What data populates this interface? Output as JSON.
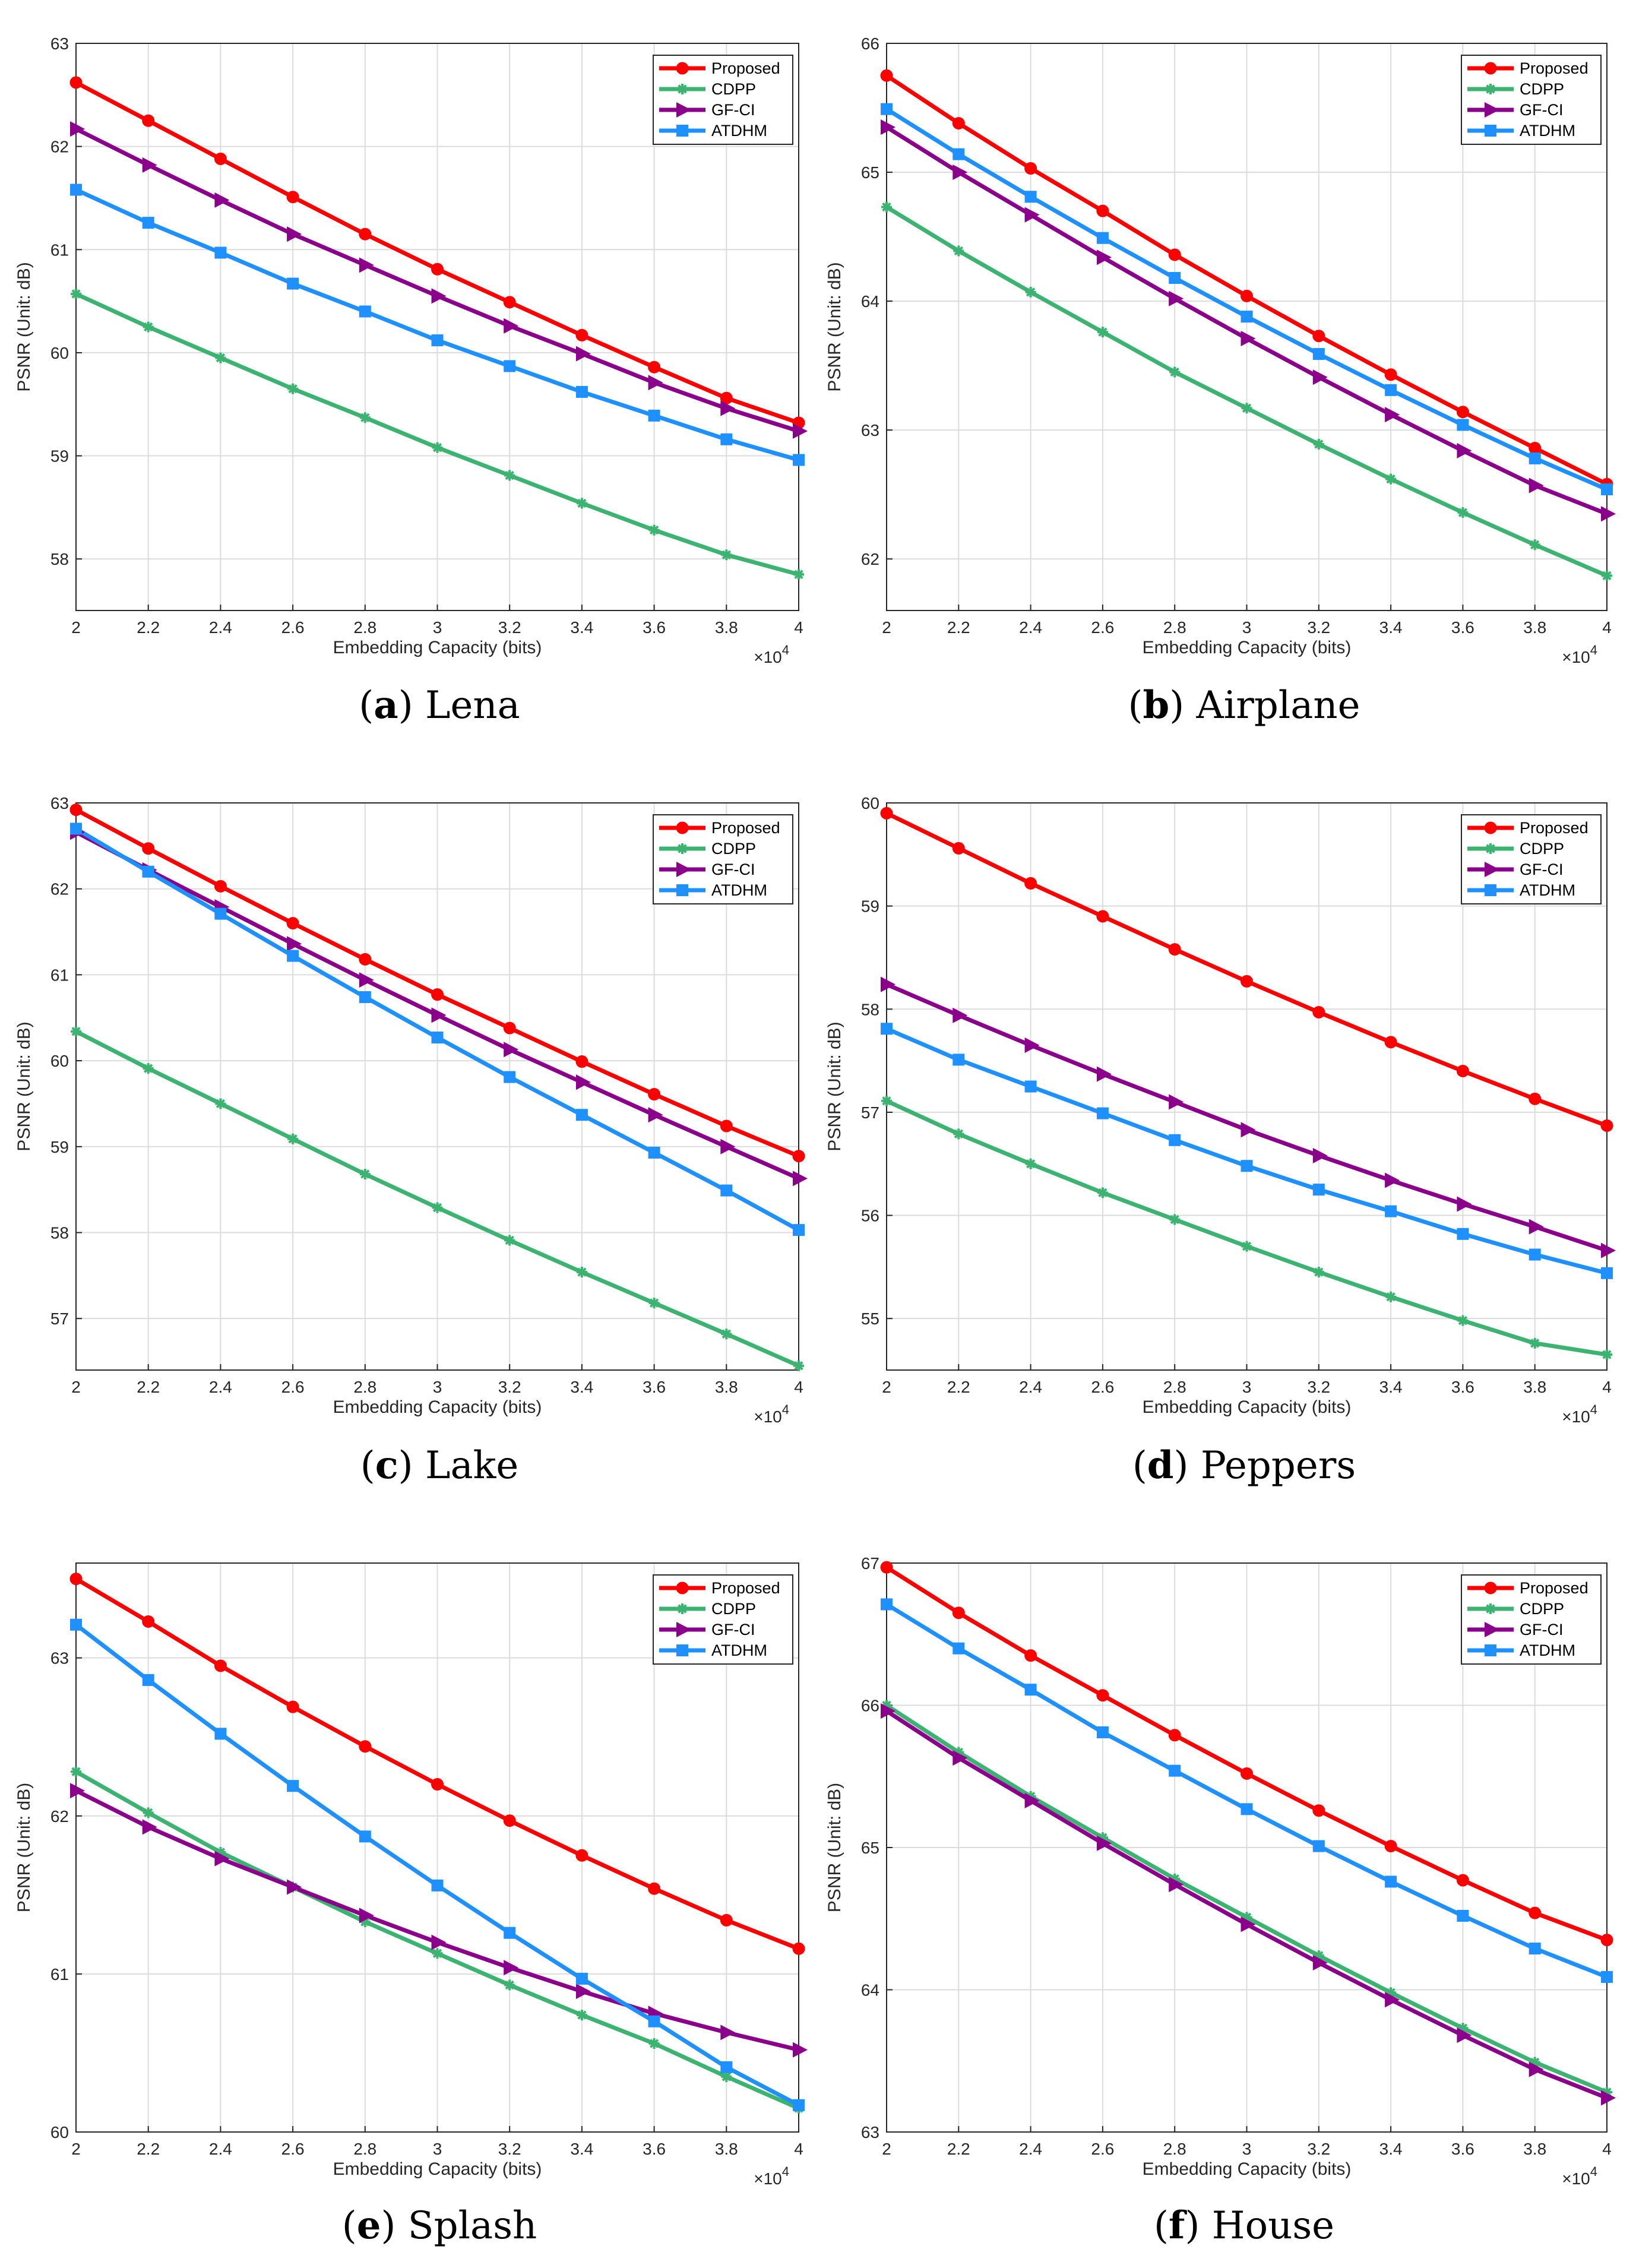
{
  "figure": {
    "panels": [
      {
        "letter": "a",
        "name": "Lena"
      },
      {
        "letter": "b",
        "name": "Airplane"
      },
      {
        "letter": "c",
        "name": "Lake"
      },
      {
        "letter": "d",
        "name": "Peppers"
      },
      {
        "letter": "e",
        "name": "Splash"
      },
      {
        "letter": "f",
        "name": "House"
      }
    ]
  },
  "chart_data": [
    {
      "type": "line",
      "title": "(a) Lena",
      "xlabel": "Embedding Capacity (bits)",
      "ylabel": "PSNR (Unit: dB)",
      "x_multiplier": "×10^4",
      "x": [
        2,
        2.2,
        2.4,
        2.6,
        2.8,
        3,
        3.2,
        3.4,
        3.6,
        3.8,
        4
      ],
      "xticks": [
        "2",
        "2.2",
        "2.4",
        "2.6",
        "2.8",
        "3",
        "3.2",
        "3.4",
        "3.6",
        "3.8",
        "4"
      ],
      "xlim": [
        2,
        4
      ],
      "ylim": [
        57.5,
        63
      ],
      "yticks": [
        58,
        59,
        60,
        61,
        62,
        63
      ],
      "grid": true,
      "legend": "top-right",
      "series": [
        {
          "name": "Proposed",
          "color": "#ff0000",
          "marker": "circle",
          "values": [
            62.62,
            62.25,
            61.88,
            61.51,
            61.15,
            60.81,
            60.49,
            60.17,
            59.86,
            59.56,
            59.32
          ]
        },
        {
          "name": "CDPP",
          "color": "#3cb371",
          "marker": "star",
          "values": [
            60.57,
            60.25,
            59.95,
            59.65,
            59.37,
            59.08,
            58.81,
            58.54,
            58.28,
            58.04,
            57.85
          ]
        },
        {
          "name": "GF-CI",
          "color": "#8b008b",
          "marker": "triangle",
          "values": [
            62.17,
            61.82,
            61.48,
            61.15,
            60.85,
            60.55,
            60.26,
            59.99,
            59.71,
            59.46,
            59.24
          ]
        },
        {
          "name": "ATDHM",
          "color": "#1e90ff",
          "marker": "square",
          "values": [
            61.58,
            61.26,
            60.97,
            60.67,
            60.4,
            60.12,
            59.87,
            59.62,
            59.39,
            59.16,
            58.96
          ]
        }
      ]
    },
    {
      "type": "line",
      "title": "(b) Airplane",
      "xlabel": "Embedding Capacity (bits)",
      "ylabel": "PSNR (Unit: dB)",
      "x_multiplier": "×10^4",
      "x": [
        2,
        2.2,
        2.4,
        2.6,
        2.8,
        3,
        3.2,
        3.4,
        3.6,
        3.8,
        4
      ],
      "xticks": [
        "2",
        "2.2",
        "2.4",
        "2.6",
        "2.8",
        "3",
        "3.2",
        "3.4",
        "3.6",
        "3.8",
        "4"
      ],
      "xlim": [
        2,
        4
      ],
      "ylim": [
        61.6,
        66
      ],
      "yticks": [
        62,
        63,
        64,
        65,
        66
      ],
      "grid": true,
      "legend": "top-right",
      "series": [
        {
          "name": "Proposed",
          "color": "#ff0000",
          "marker": "circle",
          "values": [
            65.75,
            65.38,
            65.03,
            64.7,
            64.36,
            64.04,
            63.73,
            63.43,
            63.14,
            62.86,
            62.58
          ]
        },
        {
          "name": "CDPP",
          "color": "#3cb371",
          "marker": "star",
          "values": [
            64.73,
            64.39,
            64.07,
            63.76,
            63.45,
            63.17,
            62.89,
            62.62,
            62.36,
            62.11,
            61.87
          ]
        },
        {
          "name": "GF-CI",
          "color": "#8b008b",
          "marker": "triangle",
          "values": [
            65.35,
            65.0,
            64.67,
            64.34,
            64.02,
            63.71,
            63.41,
            63.12,
            62.84,
            62.57,
            62.35
          ]
        },
        {
          "name": "ATDHM",
          "color": "#1e90ff",
          "marker": "square",
          "values": [
            65.49,
            65.14,
            64.81,
            64.49,
            64.18,
            63.88,
            63.59,
            63.31,
            63.04,
            62.78,
            62.54
          ]
        }
      ]
    },
    {
      "type": "line",
      "title": "(c) Lake",
      "xlabel": "Embedding Capacity (bits)",
      "ylabel": "PSNR (Unit: dB)",
      "x_multiplier": "×10^4",
      "x": [
        2,
        2.2,
        2.4,
        2.6,
        2.8,
        3,
        3.2,
        3.4,
        3.6,
        3.8,
        4
      ],
      "xticks": [
        "2",
        "2.2",
        "2.4",
        "2.6",
        "2.8",
        "3",
        "3.2",
        "3.4",
        "3.6",
        "3.8",
        "4"
      ],
      "xlim": [
        2,
        4
      ],
      "ylim": [
        56.4,
        63
      ],
      "yticks": [
        57,
        58,
        59,
        60,
        61,
        62,
        63
      ],
      "grid": true,
      "legend": "top-right",
      "series": [
        {
          "name": "Proposed",
          "color": "#ff0000",
          "marker": "circle",
          "values": [
            62.92,
            62.47,
            62.03,
            61.6,
            61.18,
            60.77,
            60.38,
            59.99,
            59.61,
            59.24,
            58.89
          ]
        },
        {
          "name": "CDPP",
          "color": "#3cb371",
          "marker": "star",
          "values": [
            60.34,
            59.91,
            59.5,
            59.09,
            58.68,
            58.29,
            57.91,
            57.54,
            57.18,
            56.82,
            56.45
          ]
        },
        {
          "name": "GF-CI",
          "color": "#8b008b",
          "marker": "triangle",
          "values": [
            62.66,
            62.22,
            61.79,
            61.36,
            60.94,
            60.53,
            60.13,
            59.75,
            59.37,
            59.0,
            58.63
          ]
        },
        {
          "name": "ATDHM",
          "color": "#1e90ff",
          "marker": "square",
          "values": [
            62.7,
            62.2,
            61.71,
            61.22,
            60.74,
            60.27,
            59.81,
            59.37,
            58.93,
            58.49,
            58.03
          ]
        }
      ]
    },
    {
      "type": "line",
      "title": "(d) Peppers",
      "xlabel": "Embedding Capacity (bits)",
      "ylabel": "PSNR (Unit: dB)",
      "x_multiplier": "×10^4",
      "x": [
        2,
        2.2,
        2.4,
        2.6,
        2.8,
        3,
        3.2,
        3.4,
        3.6,
        3.8,
        4
      ],
      "xticks": [
        "2",
        "2.2",
        "2.4",
        "2.6",
        "2.8",
        "3",
        "3.2",
        "3.4",
        "3.6",
        "3.8",
        "4"
      ],
      "xlim": [
        2,
        4
      ],
      "ylim": [
        54.5,
        60
      ],
      "yticks": [
        55,
        56,
        57,
        58,
        59,
        60
      ],
      "grid": true,
      "legend": "top-right",
      "series": [
        {
          "name": "Proposed",
          "color": "#ff0000",
          "marker": "circle",
          "values": [
            59.9,
            59.56,
            59.22,
            58.9,
            58.58,
            58.27,
            57.97,
            57.68,
            57.4,
            57.13,
            56.87
          ]
        },
        {
          "name": "CDPP",
          "color": "#3cb371",
          "marker": "star",
          "values": [
            57.11,
            56.79,
            56.5,
            56.22,
            55.96,
            55.7,
            55.45,
            55.21,
            54.98,
            54.76,
            54.65
          ]
        },
        {
          "name": "GF-CI",
          "color": "#8b008b",
          "marker": "triangle",
          "values": [
            58.24,
            57.94,
            57.65,
            57.37,
            57.1,
            56.83,
            56.58,
            56.34,
            56.11,
            55.89,
            55.66
          ]
        },
        {
          "name": "ATDHM",
          "color": "#1e90ff",
          "marker": "square",
          "values": [
            57.81,
            57.51,
            57.25,
            56.99,
            56.73,
            56.48,
            56.25,
            56.04,
            55.82,
            55.62,
            55.44
          ]
        }
      ]
    },
    {
      "type": "line",
      "title": "(e) Splash",
      "xlabel": "Embedding Capacity (bits)",
      "ylabel": "PSNR (Unit: dB)",
      "x_multiplier": "×10^4",
      "x": [
        2,
        2.2,
        2.4,
        2.6,
        2.8,
        3,
        3.2,
        3.4,
        3.6,
        3.8,
        4
      ],
      "xticks": [
        "2",
        "2.2",
        "2.4",
        "2.6",
        "2.8",
        "3",
        "3.2",
        "3.4",
        "3.6",
        "3.8",
        "4"
      ],
      "xlim": [
        2,
        4
      ],
      "ylim": [
        60,
        63.6
      ],
      "yticks": [
        60,
        61,
        62,
        63
      ],
      "grid": true,
      "legend": "top-right",
      "series": [
        {
          "name": "Proposed",
          "color": "#ff0000",
          "marker": "circle",
          "values": [
            63.5,
            63.23,
            62.95,
            62.69,
            62.44,
            62.2,
            61.97,
            61.75,
            61.54,
            61.34,
            61.16
          ]
        },
        {
          "name": "CDPP",
          "color": "#3cb371",
          "marker": "star",
          "values": [
            62.28,
            62.02,
            61.77,
            61.55,
            61.33,
            61.13,
            60.93,
            60.74,
            60.56,
            60.35,
            60.15
          ]
        },
        {
          "name": "GF-CI",
          "color": "#8b008b",
          "marker": "triangle",
          "values": [
            62.16,
            61.93,
            61.73,
            61.55,
            61.37,
            61.2,
            61.04,
            60.89,
            60.75,
            60.63,
            60.52
          ]
        },
        {
          "name": "ATDHM",
          "color": "#1e90ff",
          "marker": "square",
          "values": [
            63.21,
            62.86,
            62.52,
            62.19,
            61.87,
            61.56,
            61.26,
            60.97,
            60.7,
            60.41,
            60.17
          ]
        }
      ]
    },
    {
      "type": "line",
      "title": "(f) House",
      "xlabel": "Embedding Capacity (bits)",
      "ylabel": "PSNR (Unit: dB)",
      "x_multiplier": "×10^4",
      "x": [
        2,
        2.2,
        2.4,
        2.6,
        2.8,
        3,
        3.2,
        3.4,
        3.6,
        3.8,
        4
      ],
      "xticks": [
        "2",
        "2.2",
        "2.4",
        "2.6",
        "2.8",
        "3",
        "3.2",
        "3.4",
        "3.6",
        "3.8",
        "4"
      ],
      "xlim": [
        2,
        4
      ],
      "ylim": [
        63,
        67
      ],
      "yticks": [
        63,
        64,
        65,
        66,
        67
      ],
      "grid": true,
      "legend": "top-right",
      "series": [
        {
          "name": "Proposed",
          "color": "#ff0000",
          "marker": "circle",
          "values": [
            66.97,
            66.65,
            66.35,
            66.07,
            65.79,
            65.52,
            65.26,
            65.01,
            64.77,
            64.54,
            64.35
          ]
        },
        {
          "name": "CDPP",
          "color": "#3cb371",
          "marker": "star",
          "values": [
            66.0,
            65.67,
            65.36,
            65.07,
            64.78,
            64.51,
            64.24,
            63.98,
            63.73,
            63.49,
            63.28
          ]
        },
        {
          "name": "GF-CI",
          "color": "#8b008b",
          "marker": "triangle",
          "values": [
            65.96,
            65.63,
            65.33,
            65.03,
            64.74,
            64.46,
            64.19,
            63.93,
            63.68,
            63.44,
            63.24
          ]
        },
        {
          "name": "ATDHM",
          "color": "#1e90ff",
          "marker": "square",
          "values": [
            66.71,
            66.4,
            66.11,
            65.81,
            65.54,
            65.27,
            65.01,
            64.76,
            64.52,
            64.29,
            64.09
          ]
        }
      ]
    }
  ]
}
